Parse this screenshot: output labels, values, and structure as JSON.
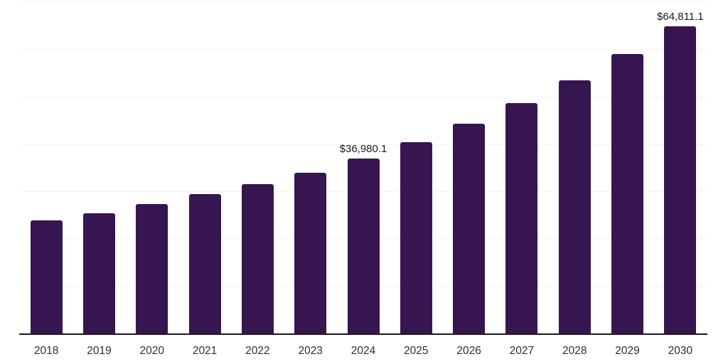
{
  "chart_data": {
    "type": "bar",
    "title": "",
    "xlabel": "",
    "ylabel": "",
    "categories": [
      "2018",
      "2019",
      "2020",
      "2021",
      "2022",
      "2023",
      "2024",
      "2025",
      "2026",
      "2027",
      "2028",
      "2029",
      "2030"
    ],
    "values": [
      24000,
      25500,
      27400,
      29500,
      31500,
      34000,
      36980.1,
      40400,
      44300,
      48600,
      53400,
      59000,
      64811.1
    ],
    "value_labels": [
      "",
      "",
      "",
      "",
      "",
      "",
      "$36,980.1",
      "",
      "",
      "",
      "",
      "",
      "$64,811.1"
    ],
    "ylim": [
      0,
      70000
    ],
    "grid_step": 10000,
    "grid": "horizontal",
    "y_axis_labels_visible": false,
    "legend_position": "none",
    "colors": {
      "bar": "#371551",
      "gridline": "#f5f5f5",
      "axis_line": "#1a1a1a",
      "value_label_text": "#1a1a1a",
      "tick_label_text": "#2e2e2e",
      "background": "#ffffff"
    }
  }
}
